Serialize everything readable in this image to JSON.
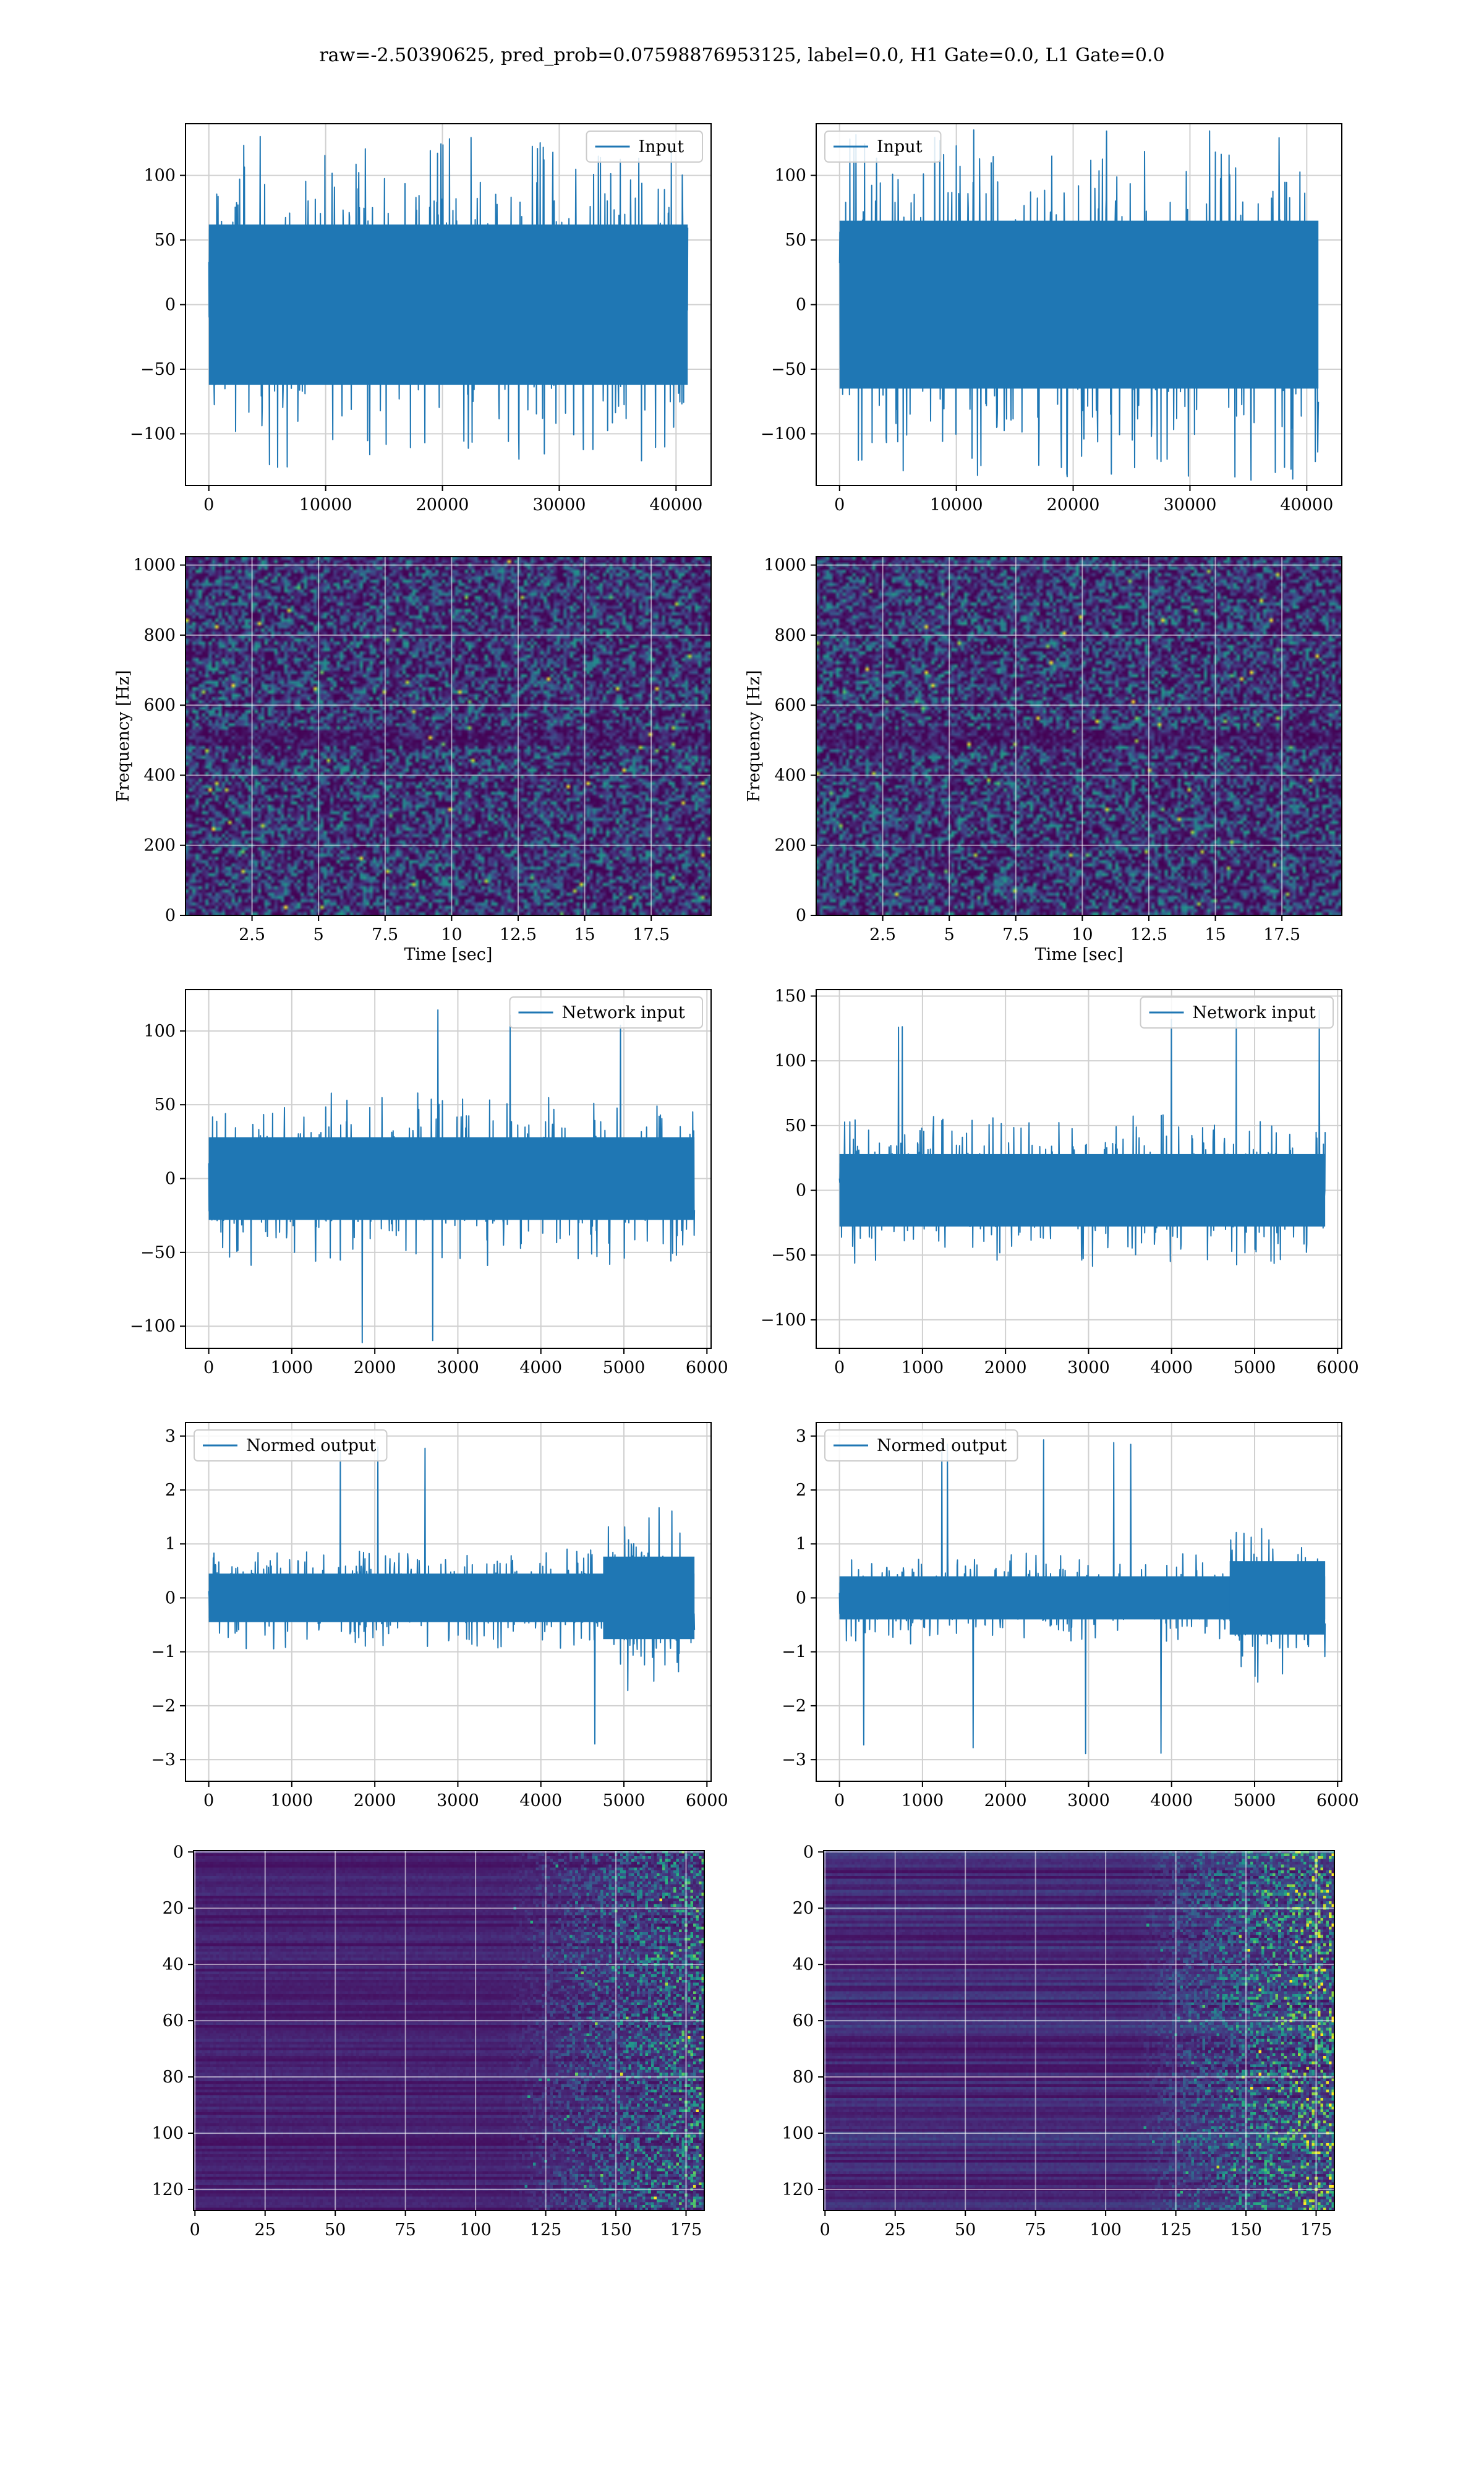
{
  "suptitle": "raw=-2.50390625, pred_prob=0.07598876953125, label=0.0, H1 Gate=0.0, L1 Gate=0.0",
  "colors": {
    "line": "#1f77b4",
    "grid": "#d0d0d0",
    "viridis": [
      "#440154",
      "#472d7b",
      "#3b528b",
      "#2c728e",
      "#21918c",
      "#28ae80",
      "#5ec962",
      "#addc30",
      "#fde725"
    ]
  },
  "chart_data": [
    {
      "id": "r1c1",
      "type": "line",
      "legend": "Input",
      "legend_loc": "top-right",
      "xlim": [
        -2000,
        43000
      ],
      "ylim": [
        -140,
        140
      ],
      "xticks": [
        0,
        10000,
        20000,
        30000,
        40000
      ],
      "yticks": [
        -100,
        -50,
        0,
        50,
        100
      ],
      "x_range": [
        0,
        41000
      ],
      "core": 62,
      "peak": 130,
      "grid": true
    },
    {
      "id": "r1c2",
      "type": "line",
      "legend": "Input",
      "legend_loc": "top-left",
      "xlim": [
        -2000,
        43000
      ],
      "ylim": [
        -140,
        140
      ],
      "xticks": [
        0,
        10000,
        20000,
        30000,
        40000
      ],
      "yticks": [
        -100,
        -50,
        0,
        50,
        100
      ],
      "x_range": [
        0,
        41000
      ],
      "core": 65,
      "peak": 127,
      "grid": true
    },
    {
      "id": "r2c1",
      "type": "heatmap",
      "xlabel": "Time [sec]",
      "ylabel": "Frequency [Hz]",
      "xlim": [
        0,
        19.75
      ],
      "ylim": [
        0,
        1024
      ],
      "xticks": [
        2.5,
        5.0,
        7.5,
        10.0,
        12.5,
        15.0,
        17.5
      ],
      "yticks": [
        0,
        200,
        400,
        600,
        800,
        1000
      ],
      "grid": true
    },
    {
      "id": "r2c2",
      "type": "heatmap",
      "xlabel": "Time [sec]",
      "ylabel": "Frequency [Hz]",
      "xlim": [
        0,
        19.75
      ],
      "ylim": [
        0,
        1024
      ],
      "xticks": [
        2.5,
        5.0,
        7.5,
        10.0,
        12.5,
        15.0,
        17.5
      ],
      "yticks": [
        0,
        200,
        400,
        600,
        800,
        1000
      ],
      "grid": true
    },
    {
      "id": "r3c1",
      "type": "line",
      "legend": "Network input",
      "legend_loc": "top-right",
      "xlim": [
        -280,
        6050
      ],
      "ylim": [
        -115,
        128
      ],
      "xticks": [
        0,
        1000,
        2000,
        3000,
        4000,
        5000,
        6000
      ],
      "yticks": [
        -100,
        -50,
        0,
        50,
        100
      ],
      "x_range": [
        0,
        5850
      ],
      "core": 28,
      "peak": 117,
      "grid": true
    },
    {
      "id": "r3c2",
      "type": "line",
      "legend": "Network input",
      "legend_loc": "top-right",
      "xlim": [
        -280,
        6050
      ],
      "ylim": [
        -122,
        155
      ],
      "xticks": [
        0,
        1000,
        2000,
        3000,
        4000,
        5000,
        6000
      ],
      "yticks": [
        -100,
        -50,
        0,
        50,
        100,
        150
      ],
      "x_range": [
        0,
        5850
      ],
      "core": 28,
      "peak": 143,
      "grid": true
    },
    {
      "id": "r4c1",
      "type": "line",
      "legend": "Normed output",
      "legend_loc": "top-left",
      "xlim": [
        -280,
        6050
      ],
      "ylim": [
        -3.4,
        3.25
      ],
      "xticks": [
        0,
        1000,
        2000,
        3000,
        4000,
        5000,
        6000
      ],
      "yticks": [
        -3,
        -2,
        -1,
        0,
        1,
        2,
        3
      ],
      "x_range": [
        0,
        5850
      ],
      "core": 0.45,
      "peak": 3.1,
      "burst_start": 4750,
      "grid": true
    },
    {
      "id": "r4c2",
      "type": "line",
      "legend": "Normed output",
      "legend_loc": "top-left",
      "xlim": [
        -280,
        6050
      ],
      "ylim": [
        -3.4,
        3.25
      ],
      "xticks": [
        0,
        1000,
        2000,
        3000,
        4000,
        5000,
        6000
      ],
      "yticks": [
        -3,
        -2,
        -1,
        0,
        1,
        2,
        3
      ],
      "x_range": [
        0,
        5850
      ],
      "core": 0.4,
      "peak": 3.0,
      "burst_start": 4700,
      "grid": true
    },
    {
      "id": "r5c1",
      "type": "heatmap",
      "xlim": [
        -0.5,
        181.5
      ],
      "ylim": [
        127.5,
        -0.5
      ],
      "y_inverted": true,
      "xticks": [
        0,
        25,
        50,
        75,
        100,
        125,
        150,
        175
      ],
      "yticks": [
        0,
        20,
        40,
        60,
        80,
        100,
        120
      ],
      "grid": true
    },
    {
      "id": "r5c2",
      "type": "heatmap",
      "xlim": [
        -0.5,
        181.5
      ],
      "ylim": [
        127.5,
        -0.5
      ],
      "y_inverted": true,
      "xticks": [
        0,
        25,
        50,
        75,
        100,
        125,
        150,
        175
      ],
      "yticks": [
        0,
        20,
        40,
        60,
        80,
        100,
        120
      ],
      "grid": true
    }
  ]
}
